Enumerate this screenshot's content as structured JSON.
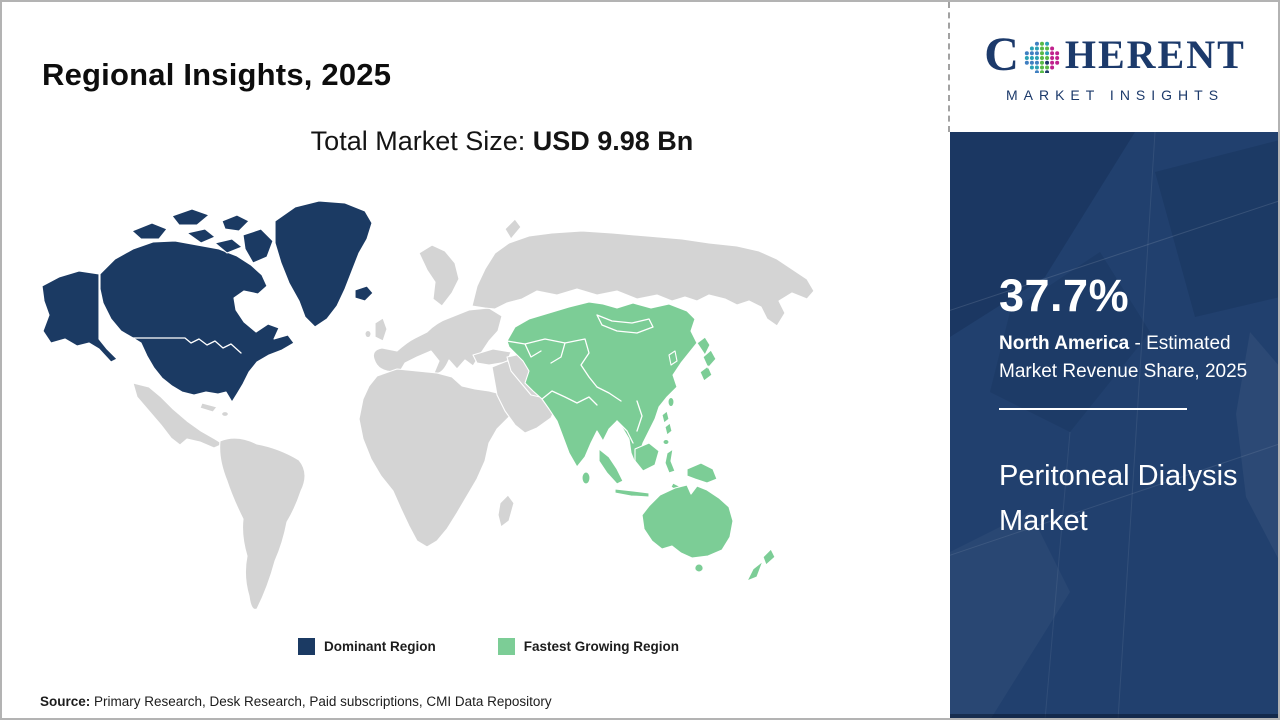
{
  "header": {
    "title": "Regional Insights, 2025"
  },
  "market": {
    "label": "Total Market Size: ",
    "value": "USD 9.98 Bn"
  },
  "logo": {
    "word_first": "C",
    "word_rest": "HERENT",
    "tagline": "MARKET INSIGHTS",
    "brand_navy": "#1c3a6b",
    "dot_palette": [
      "#2aa1b5",
      "#57b947",
      "#c0218d",
      "#3f7fc1",
      "#1c3a6b"
    ]
  },
  "map": {
    "colors": {
      "dominant": "#1b3a63",
      "fastest": "#7ccd96",
      "land": "#d4d4d4",
      "border": "#ffffff"
    }
  },
  "legend": {
    "items": [
      {
        "label": "Dominant Region",
        "color": "#1b3a63"
      },
      {
        "label": "Fastest Growing Region",
        "color": "#7ccd96"
      }
    ]
  },
  "sidebar": {
    "panel_color": "#21406e",
    "stat_value": "37.7%",
    "stat_region": "North America",
    "stat_rest": " - Estimated Market Revenue Share, 2025",
    "product_name": "Peritoneal Dialysis Market"
  },
  "footer": {
    "source_label": "Source:",
    "source_rest": " Primary Research, Desk Research, Paid subscriptions, CMI Data Repository"
  }
}
